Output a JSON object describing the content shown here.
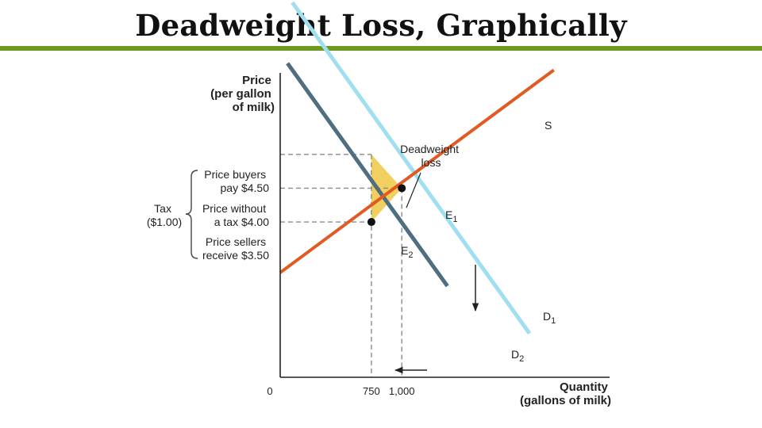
{
  "slide": {
    "title": "Deadweight Loss, Graphically",
    "rule_color": "#6d9a1e"
  },
  "chart_data": {
    "type": "line",
    "title": "",
    "xlabel": [
      "Quantity",
      "(gallons of milk)"
    ],
    "ylabel": [
      "Price",
      "(per gallon",
      "of milk)"
    ],
    "x_origin_label": "0",
    "x_ticks": [
      {
        "value": 750,
        "label": "750"
      },
      {
        "value": 1000,
        "label": "1,000"
      }
    ],
    "series": [
      {
        "name": "S",
        "color": "#e05a22",
        "points": [
          [
            0,
            2.75
          ],
          [
            2250,
            5.75
          ]
        ]
      },
      {
        "name": "D1",
        "color": "#9fdff0",
        "points": [
          [
            100,
            6.75
          ],
          [
            2050,
            1.85
          ]
        ]
      },
      {
        "name": "D2",
        "color": "#4f6e7f",
        "points": [
          [
            60,
            5.85
          ],
          [
            1375,
            2.55
          ]
        ]
      }
    ],
    "points": [
      {
        "label": "E1",
        "x": 1000,
        "y": 4.0
      },
      {
        "label": "E2",
        "x": 750,
        "y": 3.5
      }
    ],
    "price_labels": [
      {
        "lines": [
          "Price buyers",
          "pay $4.50"
        ],
        "y": 4.5
      },
      {
        "lines": [
          "Price without",
          "a tax $4.00"
        ],
        "y": 4.0
      },
      {
        "lines": [
          "Price sellers",
          "receive $3.50"
        ],
        "y": 3.5
      }
    ],
    "brace_label": [
      "Tax",
      "($1.00)"
    ],
    "annotation": {
      "lines": [
        "Deadweight",
        "loss"
      ]
    },
    "deadweight_loss_color": "#f2d060",
    "arrows": [
      "down (demand shift)",
      "left (quantity reduction)"
    ],
    "grid": false
  }
}
